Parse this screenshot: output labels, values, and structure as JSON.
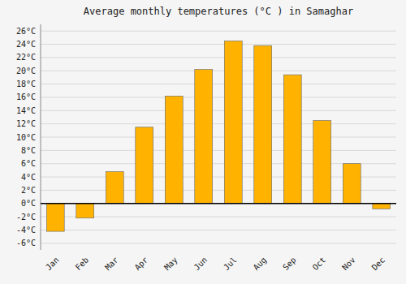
{
  "chart_data": {
    "type": "bar",
    "title": "Average monthly temperatures (°C ) in Samaghar",
    "categories": [
      "Jan",
      "Feb",
      "Mar",
      "Apr",
      "May",
      "Jun",
      "Jul",
      "Aug",
      "Sep",
      "Oct",
      "Nov",
      "Dec"
    ],
    "values": [
      -4.2,
      -2.2,
      4.8,
      11.5,
      16.2,
      20.2,
      24.5,
      23.8,
      19.4,
      12.5,
      6.0,
      -0.8
    ],
    "color": "#FFB300",
    "ylim": [
      -7,
      27
    ],
    "yticks": [
      {
        "value": -6,
        "label": "-6°C"
      },
      {
        "value": -4,
        "label": "-4°C"
      },
      {
        "value": -2,
        "label": "-2°C"
      },
      {
        "value": 0,
        "label": "0°C"
      },
      {
        "value": 2,
        "label": "2°C"
      },
      {
        "value": 4,
        "label": "4°C"
      },
      {
        "value": 6,
        "label": "6°C"
      },
      {
        "value": 8,
        "label": "8°C"
      },
      {
        "value": 10,
        "label": "10°C"
      },
      {
        "value": 12,
        "label": "12°C"
      },
      {
        "value": 14,
        "label": "14°C"
      },
      {
        "value": 16,
        "label": "16°C"
      },
      {
        "value": 18,
        "label": "18°C"
      },
      {
        "value": 20,
        "label": "20°C"
      },
      {
        "value": 22,
        "label": "22°C"
      },
      {
        "value": 24,
        "label": "24°C"
      },
      {
        "value": 26,
        "label": "26°C"
      }
    ],
    "grid": true
  }
}
